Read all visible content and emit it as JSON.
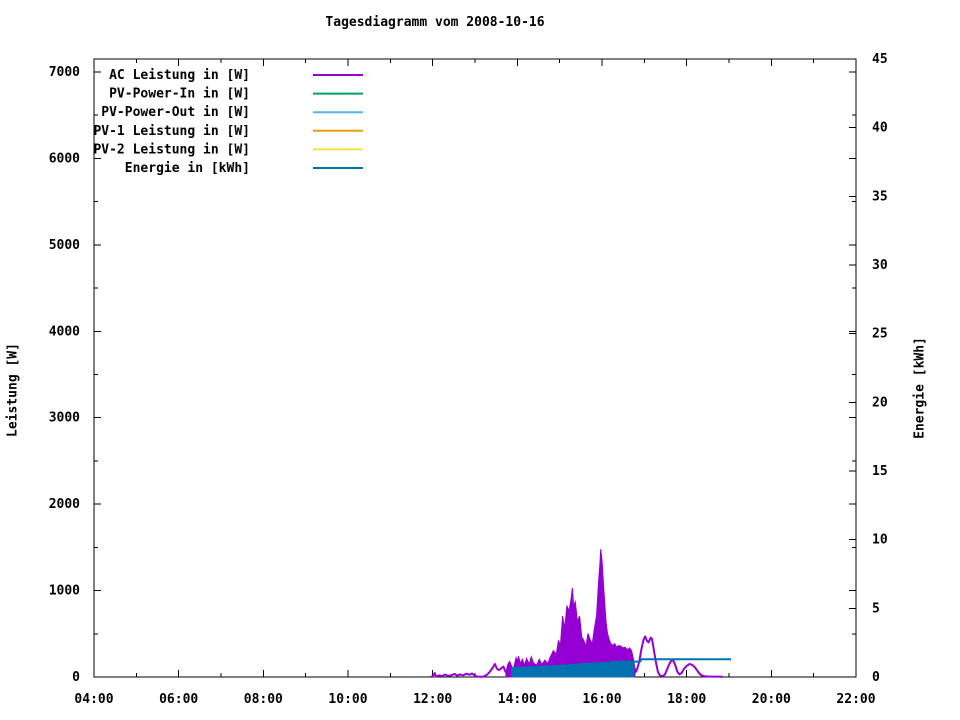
{
  "chart_data": {
    "type": "line",
    "title": "Tagesdiagramm vom 2008-10-16",
    "grid": false,
    "legend_position": "top-left-inside",
    "x_axis": {
      "unit": "time",
      "min": 4,
      "max": 22,
      "major_ticks": [
        {
          "v": 4,
          "label": "04:00"
        },
        {
          "v": 6,
          "label": "06:00"
        },
        {
          "v": 8,
          "label": "08:00"
        },
        {
          "v": 10,
          "label": "10:00"
        },
        {
          "v": 12,
          "label": "12:00"
        },
        {
          "v": 14,
          "label": "14:00"
        },
        {
          "v": 16,
          "label": "16:00"
        },
        {
          "v": 18,
          "label": "18:00"
        },
        {
          "v": 20,
          "label": "20:00"
        },
        {
          "v": 22,
          "label": "22:00"
        }
      ],
      "minor_step": 1
    },
    "y_left": {
      "label": "Leistung [W]",
      "min": 0,
      "max": 7150,
      "major_ticks": [
        {
          "v": 0,
          "label": "0"
        },
        {
          "v": 1000,
          "label": "1000"
        },
        {
          "v": 2000,
          "label": "2000"
        },
        {
          "v": 3000,
          "label": "3000"
        },
        {
          "v": 4000,
          "label": "4000"
        },
        {
          "v": 5000,
          "label": "5000"
        },
        {
          "v": 6000,
          "label": "6000"
        },
        {
          "v": 7000,
          "label": "7000"
        }
      ],
      "minor_step": 500
    },
    "y_right": {
      "label": "Energie [kWh]",
      "min": 0,
      "max": 45,
      "major_ticks": [
        {
          "v": 0,
          "label": "0"
        },
        {
          "v": 5,
          "label": "5"
        },
        {
          "v": 10,
          "label": "10"
        },
        {
          "v": 15,
          "label": "15"
        },
        {
          "v": 20,
          "label": "20"
        },
        {
          "v": 25,
          "label": "25"
        },
        {
          "v": 30,
          "label": "30"
        },
        {
          "v": 35,
          "label": "35"
        },
        {
          "v": 40,
          "label": "40"
        },
        {
          "v": 45,
          "label": "45"
        }
      ]
    },
    "series": [
      {
        "id": "ac-leistung",
        "name": "AC Leistung in [W]",
        "color": "#9400d3",
        "axis": "left",
        "parts": [
          {
            "style": "line",
            "points": [
              [
                11.95,
                0
              ],
              [
                12.0,
                8
              ],
              [
                12.05,
                45
              ],
              [
                12.08,
                6
              ],
              [
                12.15,
                18
              ],
              [
                12.22,
                10
              ],
              [
                12.3,
                28
              ],
              [
                12.37,
                12
              ],
              [
                12.45,
                22
              ],
              [
                12.52,
                35
              ],
              [
                12.58,
                15
              ],
              [
                12.65,
                30
              ],
              [
                12.72,
                18
              ],
              [
                12.8,
                38
              ],
              [
                12.87,
                25
              ],
              [
                12.93,
                40
              ],
              [
                13.0,
                15
              ],
              [
                13.05,
                5
              ],
              [
                13.12,
                2
              ],
              [
                13.2,
                5
              ],
              [
                13.28,
                25
              ],
              [
                13.35,
                60
              ],
              [
                13.42,
                110
              ],
              [
                13.47,
                150
              ],
              [
                13.52,
                95
              ],
              [
                13.57,
                80
              ],
              [
                13.62,
                100
              ],
              [
                13.67,
                120
              ],
              [
                13.72,
                60
              ],
              [
                13.73,
                60
              ]
            ]
          },
          {
            "style": "area",
            "points": [
              [
                13.73,
                60
              ],
              [
                13.78,
                150
              ],
              [
                13.82,
                180
              ],
              [
                13.87,
                120
              ],
              [
                13.9,
                95
              ],
              [
                13.93,
                140
              ],
              [
                13.97,
                225
              ],
              [
                14.0,
                185
              ],
              [
                14.03,
                240
              ],
              [
                14.07,
                155
              ],
              [
                14.12,
                205
              ],
              [
                14.17,
                135
              ],
              [
                14.22,
                215
              ],
              [
                14.28,
                150
              ],
              [
                14.33,
                235
              ],
              [
                14.38,
                165
              ],
              [
                14.45,
                135
              ],
              [
                14.52,
                205
              ],
              [
                14.58,
                145
              ],
              [
                14.65,
                195
              ],
              [
                14.72,
                155
              ],
              [
                14.78,
                235
              ],
              [
                14.85,
                305
              ],
              [
                14.92,
                265
              ],
              [
                14.97,
                420
              ],
              [
                15.02,
                380
              ],
              [
                15.07,
                705
              ],
              [
                15.12,
                565
              ],
              [
                15.17,
                825
              ],
              [
                15.22,
                765
              ],
              [
                15.27,
                905
              ],
              [
                15.3,
                1030
              ],
              [
                15.33,
                825
              ],
              [
                15.37,
                870
              ],
              [
                15.42,
                645
              ],
              [
                15.47,
                705
              ],
              [
                15.52,
                465
              ],
              [
                15.57,
                425
              ],
              [
                15.62,
                355
              ],
              [
                15.67,
                505
              ],
              [
                15.72,
                435
              ],
              [
                15.77,
                385
              ],
              [
                15.82,
                565
              ],
              [
                15.87,
                705
              ],
              [
                15.92,
                1105
              ],
              [
                15.95,
                1305
              ],
              [
                15.97,
                1480
              ],
              [
                16.0,
                1355
              ],
              [
                16.03,
                1105
              ],
              [
                16.07,
                805
              ],
              [
                16.1,
                625
              ],
              [
                16.13,
                505
              ],
              [
                16.17,
                435
              ],
              [
                16.2,
                395
              ],
              [
                16.25,
                365
              ],
              [
                16.3,
                385
              ],
              [
                16.35,
                345
              ],
              [
                16.4,
                365
              ],
              [
                16.45,
                355
              ],
              [
                16.5,
                335
              ],
              [
                16.55,
                345
              ],
              [
                16.6,
                315
              ],
              [
                16.65,
                335
              ],
              [
                16.7,
                305
              ],
              [
                16.75,
                185
              ],
              [
                16.78,
                95
              ]
            ]
          },
          {
            "style": "line",
            "points": [
              [
                16.78,
                95
              ],
              [
                16.8,
                60
              ],
              [
                16.83,
                90
              ],
              [
                16.88,
                180
              ],
              [
                16.93,
                320
              ],
              [
                16.98,
                430
              ],
              [
                17.02,
                470
              ],
              [
                17.06,
                420
              ],
              [
                17.1,
                400
              ],
              [
                17.15,
                455
              ],
              [
                17.18,
                440
              ],
              [
                17.22,
                330
              ],
              [
                17.27,
                180
              ],
              [
                17.32,
                60
              ],
              [
                17.37,
                15
              ],
              [
                17.42,
                10
              ],
              [
                17.48,
                25
              ],
              [
                17.53,
                80
              ],
              [
                17.58,
                140
              ],
              [
                17.63,
                185
              ],
              [
                17.68,
                195
              ],
              [
                17.73,
                140
              ],
              [
                17.78,
                60
              ],
              [
                17.83,
                30
              ],
              [
                17.88,
                45
              ],
              [
                17.93,
                90
              ],
              [
                18.0,
                130
              ],
              [
                18.07,
                150
              ],
              [
                18.13,
                140
              ],
              [
                18.2,
                110
              ],
              [
                18.27,
                60
              ],
              [
                18.33,
                25
              ],
              [
                18.4,
                10
              ],
              [
                18.5,
                6
              ],
              [
                18.65,
                5
              ],
              [
                18.85,
                4
              ]
            ]
          }
        ]
      },
      {
        "id": "pv-power-in",
        "name": "PV-Power-In in [W]",
        "color": "#009e73",
        "axis": "left",
        "parts": []
      },
      {
        "id": "pv-power-out",
        "name": "PV-Power-Out in [W]",
        "color": "#56b4e9",
        "axis": "left",
        "parts": []
      },
      {
        "id": "pv-1-leistung",
        "name": "PV-1 Leistung in [W]",
        "color": "#e69f00",
        "axis": "left",
        "parts": []
      },
      {
        "id": "pv-2-leistung",
        "name": "PV-2 Leistung in [W]",
        "color": "#f0e442",
        "axis": "left",
        "parts": []
      },
      {
        "id": "energie",
        "name": "Energie in [kWh]",
        "color": "#0072b2",
        "axis": "right",
        "parts": [
          {
            "style": "area",
            "points": [
              [
                13.87,
                0.7
              ],
              [
                14.0,
                0.71
              ],
              [
                14.2,
                0.73
              ],
              [
                14.4,
                0.76
              ],
              [
                14.6,
                0.79
              ],
              [
                14.8,
                0.82
              ],
              [
                15.0,
                0.85
              ],
              [
                15.2,
                0.89
              ],
              [
                15.4,
                0.94
              ],
              [
                15.6,
                0.99
              ],
              [
                15.8,
                1.03
              ],
              [
                16.0,
                1.06
              ],
              [
                16.2,
                1.08
              ],
              [
                16.4,
                1.1
              ],
              [
                16.6,
                1.11
              ],
              [
                16.75,
                1.11
              ]
            ]
          },
          {
            "style": "line",
            "points": [
              [
                16.2,
                1.1
              ],
              [
                16.75,
                1.12
              ],
              [
                16.9,
                1.12
              ],
              [
                16.93,
                1.29
              ],
              [
                19.05,
                1.29
              ]
            ]
          }
        ]
      }
    ]
  }
}
